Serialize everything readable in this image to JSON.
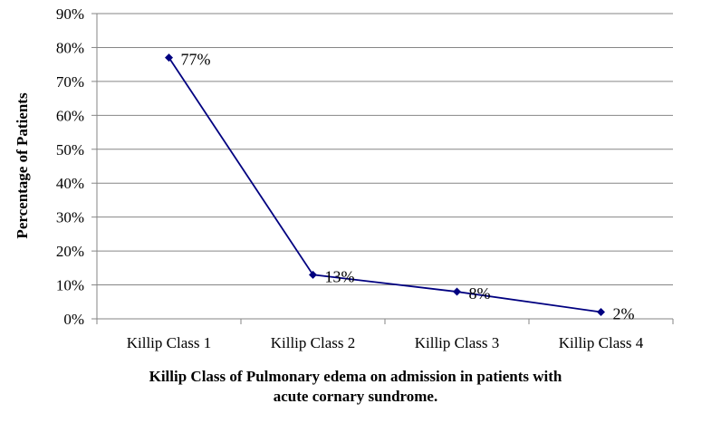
{
  "chart_data": {
    "type": "line",
    "categories": [
      "Killip Class 1",
      "Killip Class 2",
      "Killip Class 3",
      "Killip Class 4"
    ],
    "series": [
      {
        "values": [
          77,
          13,
          8,
          2
        ],
        "data_labels": [
          "77%",
          "13%",
          "8%",
          "2%"
        ]
      }
    ],
    "ylabel": "Percentage of Patients",
    "xlabel_lines": [
      "Killip Class of Pulmonary edema on admission in patients with",
      "acute cornary sundrome."
    ],
    "ylim": [
      0,
      90
    ],
    "ytick_values": [
      0,
      10,
      20,
      30,
      40,
      50,
      60,
      70,
      80,
      90
    ],
    "ytick_labels": [
      "0%",
      "10%",
      "20%",
      "30%",
      "40%",
      "50%",
      "60%",
      "70%",
      "80%",
      "90%"
    ],
    "grid": true,
    "legend": "none",
    "line_color": "#000080",
    "marker": "diamond"
  }
}
